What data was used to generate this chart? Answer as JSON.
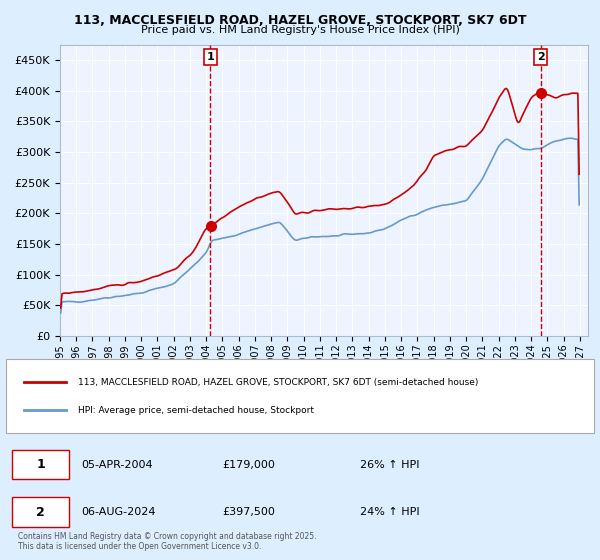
{
  "title": "113, MACCLESFIELD ROAD, HAZEL GROVE, STOCKPORT, SK7 6DT",
  "subtitle": "Price paid vs. HM Land Registry's House Price Index (HPI)",
  "legend_line1": "113, MACCLESFIELD ROAD, HAZEL GROVE, STOCKPORT, SK7 6DT (semi-detached house)",
  "legend_line2": "HPI: Average price, semi-detached house, Stockport",
  "footnote": "Contains HM Land Registry data © Crown copyright and database right 2025.\nThis data is licensed under the Open Government Licence v3.0.",
  "transaction1_date": "05-APR-2004",
  "transaction1_price": 179000,
  "transaction1_hpi": "26% ↑ HPI",
  "transaction2_date": "06-AUG-2024",
  "transaction2_price": 397500,
  "transaction2_hpi": "24% ↑ HPI",
  "vline1_x": 2004.26,
  "vline2_x": 2024.59,
  "ylim": [
    0,
    475000
  ],
  "xlim": [
    1995.0,
    2027.5
  ],
  "red_color": "#cc0000",
  "blue_color": "#6699cc",
  "bg_color": "#ddeeff",
  "plot_bg": "#eef4ff",
  "grid_color": "#ffffff",
  "vline_color": "#cc0000"
}
